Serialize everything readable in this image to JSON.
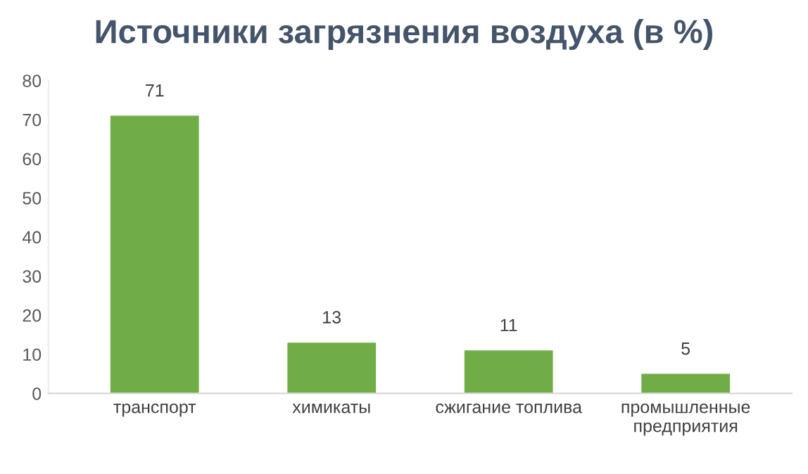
{
  "chart_data": {
    "type": "bar",
    "title": "Источники загрязнения воздуха (в %)",
    "categories": [
      "транспорт",
      "химикаты",
      "сжигание топлива",
      "промышленные предприятия"
    ],
    "values": [
      71,
      13,
      11,
      5
    ],
    "color": "#70ad47",
    "ylim": [
      0,
      80
    ],
    "yticks": [
      0,
      10,
      20,
      30,
      40,
      50,
      60,
      70,
      80
    ],
    "grid": false,
    "data_labels": true
  }
}
